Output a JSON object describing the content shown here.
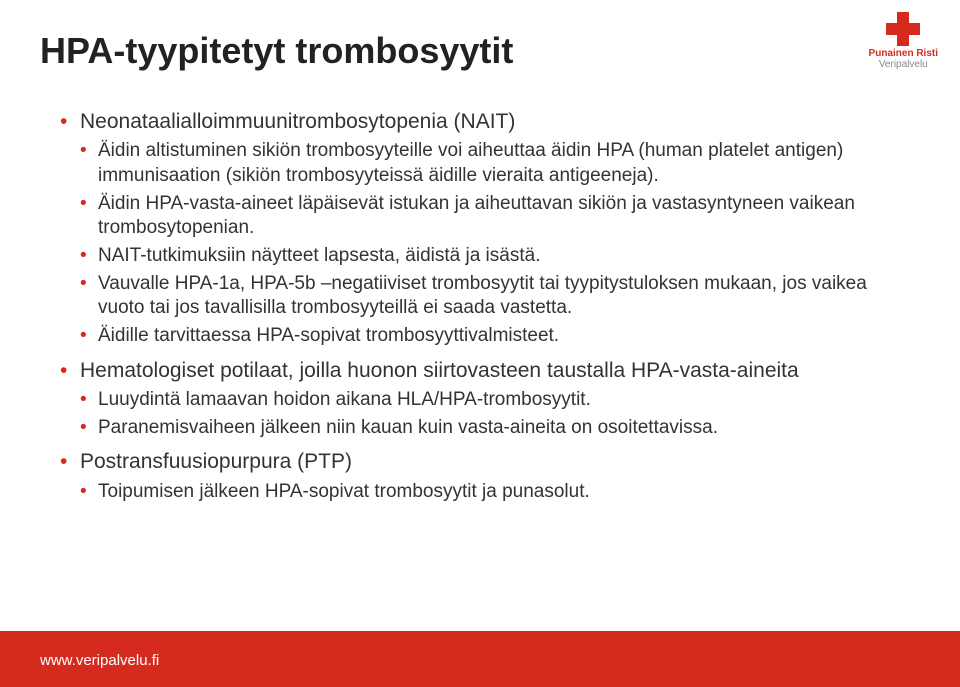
{
  "logo": {
    "line1": "Punainen Risti",
    "line2": "Veripalvelu"
  },
  "title": "HPA-tyypitetyt trombosyytit",
  "bullets": [
    {
      "text": "Neonataalialloimmuunitrombosytopenia (NAIT)",
      "children": [
        {
          "text": "Äidin altistuminen sikiön trombosyyteille voi aiheuttaa äidin HPA (human platelet antigen) immunisaation (sikiön trombosyyteissä äidille vieraita antigeeneja)."
        },
        {
          "text": "Äidin HPA-vasta-aineet läpäisevät istukan ja aiheuttavan sikiön ja vastasyntyneen vaikean trombosytopenian."
        },
        {
          "text": "NAIT-tutkimuksiin näytteet lapsesta, äidistä ja isästä."
        },
        {
          "text": "Vauvalle HPA-1a, HPA-5b –negatiiviset trombosyytit tai tyypitystuloksen mukaan, jos vaikea vuoto tai jos tavallisilla trombosyyteillä ei saada vastetta."
        },
        {
          "text": "Äidille tarvittaessa HPA-sopivat trombosyyttivalmisteet."
        }
      ]
    },
    {
      "text": "Hematologiset potilaat, joilla huonon siirtovasteen taustalla HPA-vasta-aineita",
      "children": [
        {
          "text": "Luuydintä lamaavan hoidon aikana HLA/HPA-trombosyytit."
        },
        {
          "text": "Paranemisvaiheen jälkeen niin kauan kuin vasta-aineita on osoitettavissa."
        }
      ]
    },
    {
      "text": "Postransfuusiopurpura (PTP)",
      "children": [
        {
          "text": "Toipumisen jälkeen HPA-sopivat trombosyytit ja punasolut."
        }
      ]
    }
  ],
  "footer": "www.veripalvelu.fi",
  "colors": {
    "accent": "#d52b1e",
    "text": "#333333",
    "background": "#ffffff"
  }
}
